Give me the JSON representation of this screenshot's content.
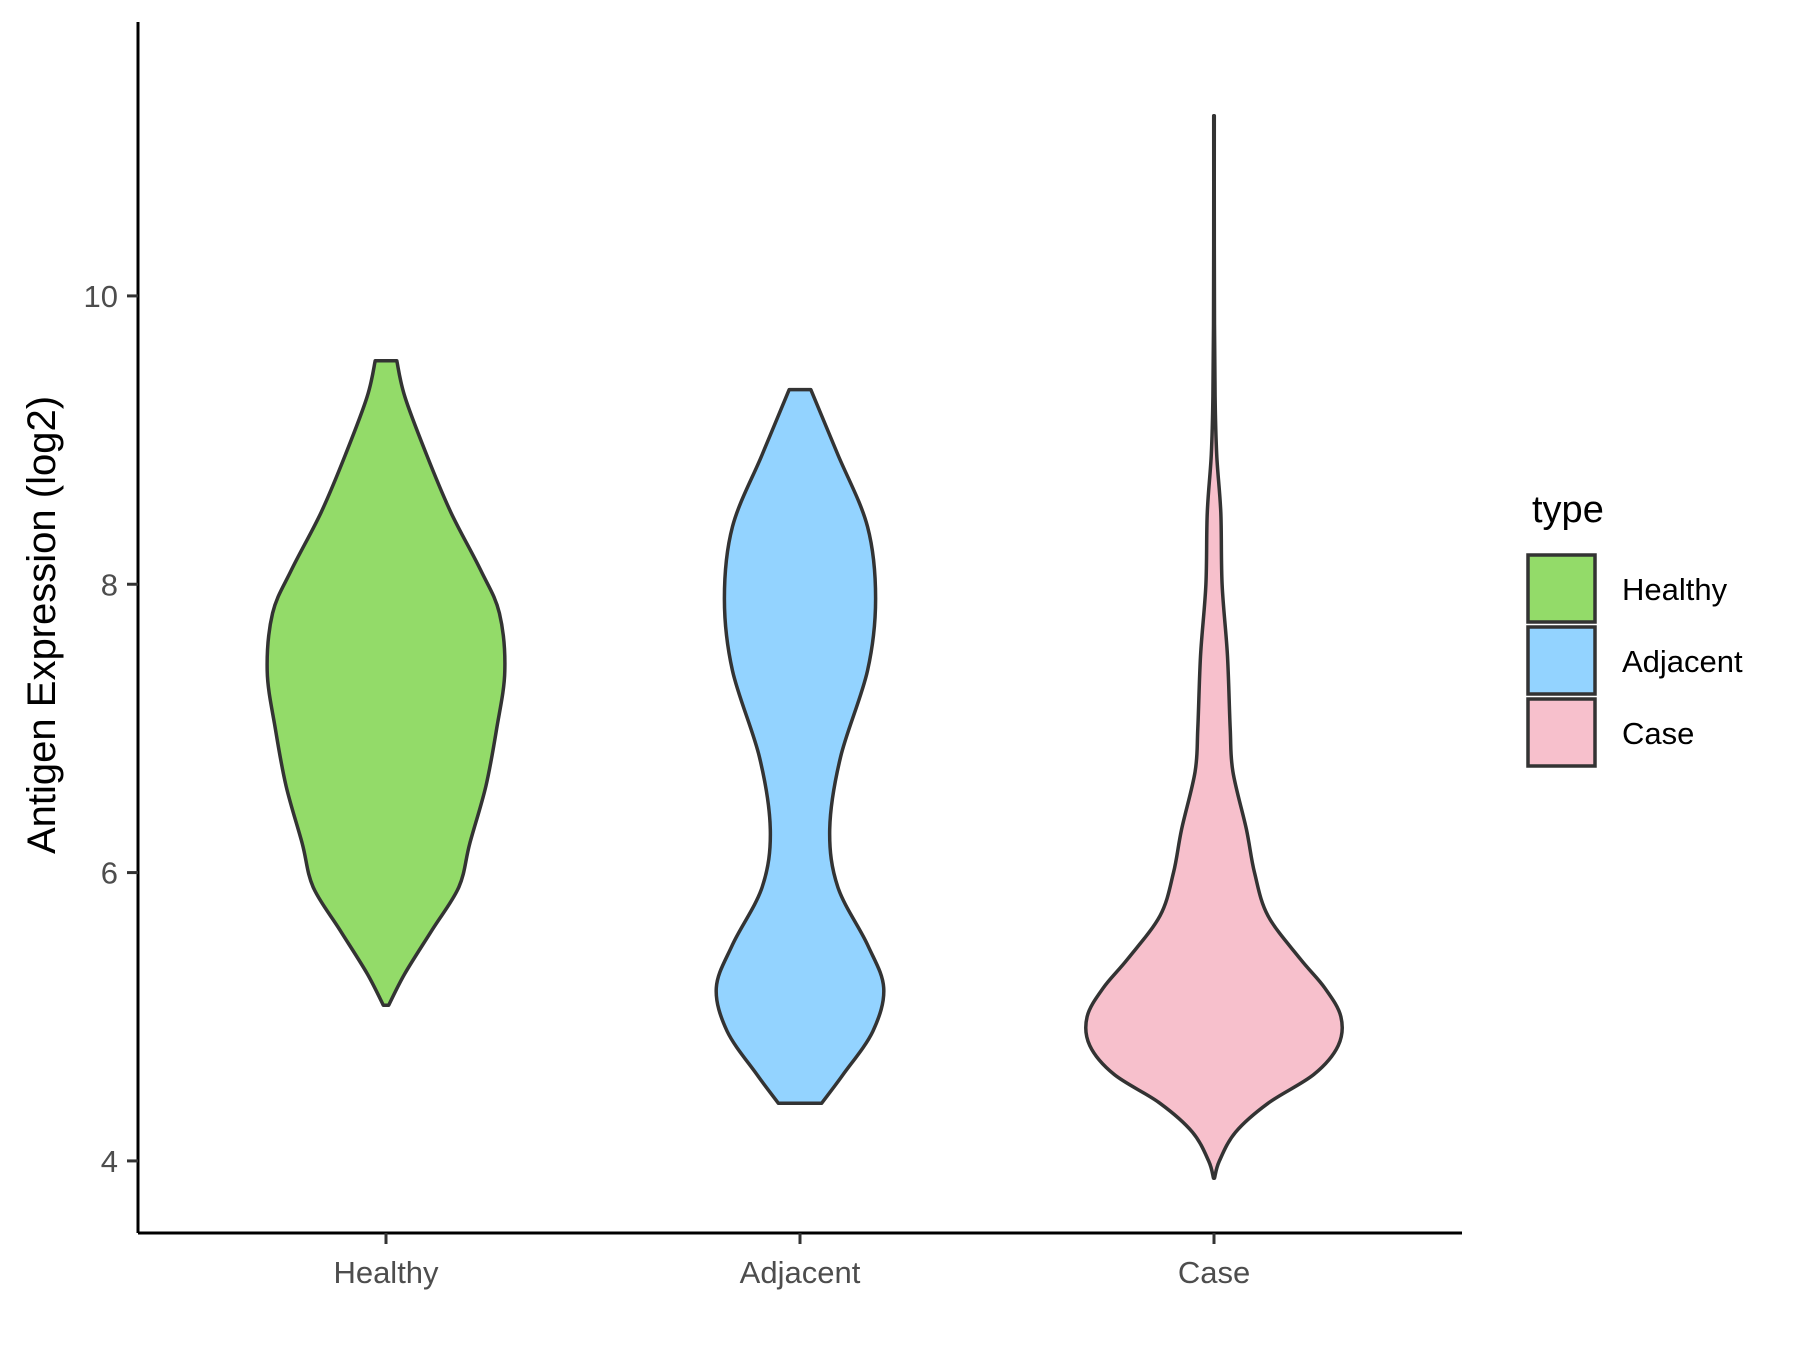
{
  "chart_data": {
    "type": "violin",
    "title": "",
    "xlabel": "",
    "ylabel": "Antigen Expression (log2)",
    "ylim": [
      3.5,
      11.9
    ],
    "yticks": [
      4,
      6,
      8,
      10
    ],
    "categories": [
      "Healthy",
      "Adjacent",
      "Case"
    ],
    "legend": {
      "title": "type",
      "position": "right",
      "entries": [
        "Healthy",
        "Adjacent",
        "Case"
      ]
    },
    "grid": false,
    "series": [
      {
        "name": "Healthy",
        "color": "#93DB69",
        "min": 5.08,
        "max": 9.55,
        "profile": [
          [
            5.08,
            0.01
          ],
          [
            5.3,
            0.07
          ],
          [
            5.6,
            0.17
          ],
          [
            5.9,
            0.27
          ],
          [
            6.2,
            0.31
          ],
          [
            6.6,
            0.37
          ],
          [
            7.0,
            0.41
          ],
          [
            7.4,
            0.44
          ],
          [
            7.8,
            0.42
          ],
          [
            8.1,
            0.35
          ],
          [
            8.5,
            0.24
          ],
          [
            8.9,
            0.15
          ],
          [
            9.3,
            0.07
          ],
          [
            9.55,
            0.04
          ]
        ]
      },
      {
        "name": "Adjacent",
        "color": "#93D3FF",
        "min": 4.4,
        "max": 9.35,
        "profile": [
          [
            4.4,
            0.08
          ],
          [
            4.6,
            0.16
          ],
          [
            4.9,
            0.27
          ],
          [
            5.2,
            0.31
          ],
          [
            5.5,
            0.25
          ],
          [
            5.9,
            0.14
          ],
          [
            6.3,
            0.11
          ],
          [
            6.8,
            0.15
          ],
          [
            7.4,
            0.25
          ],
          [
            7.9,
            0.28
          ],
          [
            8.4,
            0.25
          ],
          [
            8.9,
            0.14
          ],
          [
            9.35,
            0.04
          ]
        ]
      },
      {
        "name": "Case",
        "color": "#F7C0CC",
        "min": 3.88,
        "max": 11.25,
        "profile": [
          [
            3.88,
            0.002
          ],
          [
            4.0,
            0.02
          ],
          [
            4.2,
            0.08
          ],
          [
            4.4,
            0.2
          ],
          [
            4.6,
            0.37
          ],
          [
            4.8,
            0.46
          ],
          [
            5.0,
            0.47
          ],
          [
            5.2,
            0.41
          ],
          [
            5.4,
            0.32
          ],
          [
            5.7,
            0.2
          ],
          [
            6.0,
            0.15
          ],
          [
            6.3,
            0.12
          ],
          [
            6.7,
            0.07
          ],
          [
            7.0,
            0.06
          ],
          [
            7.5,
            0.05
          ],
          [
            8.0,
            0.03
          ],
          [
            8.5,
            0.025
          ],
          [
            8.9,
            0.01
          ],
          [
            9.3,
            0.004
          ],
          [
            9.8,
            0.002
          ],
          [
            10.5,
            0.001
          ],
          [
            11.25,
            0.001
          ]
        ]
      }
    ]
  }
}
